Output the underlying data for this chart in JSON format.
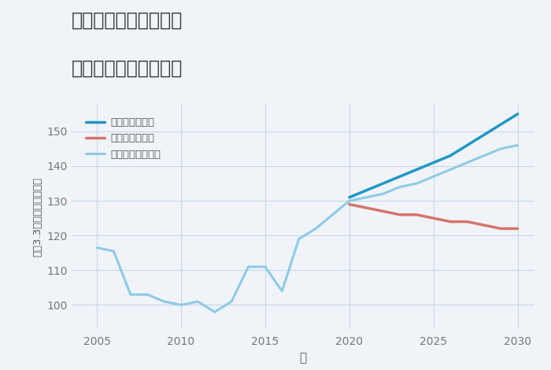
{
  "title_line1": "埼玉県川口市前上町の",
  "title_line2": "中古戸建ての価格推移",
  "xlabel": "年",
  "ylabel": "坪（3.3㎡）単価（万円）",
  "xlim": [
    2003.5,
    2031
  ],
  "ylim": [
    93,
    158
  ],
  "xticks": [
    2005,
    2010,
    2015,
    2020,
    2025,
    2030
  ],
  "yticks": [
    100,
    110,
    120,
    130,
    140,
    150
  ],
  "bg_color": "#f0f4f8",
  "grid_color": "#c8d8e8",
  "normal_color": "#8ecae6",
  "good_color": "#2196c4",
  "bad_color": "#d4756b",
  "normal_label": "ノーマルシナリオ",
  "good_label": "グッドシナリオ",
  "bad_label": "バッドシナリオ",
  "historical_years": [
    2005,
    2006,
    2007,
    2008,
    2009,
    2010,
    2011,
    2012,
    2013,
    2014,
    2015,
    2016,
    2017,
    2018,
    2019,
    2020
  ],
  "historical_values": [
    116.5,
    115.5,
    103,
    103,
    101,
    100,
    101,
    98,
    101,
    111,
    111,
    104,
    119,
    122,
    126,
    130
  ],
  "good_years": [
    2020,
    2021,
    2022,
    2023,
    2024,
    2025,
    2026,
    2027,
    2028,
    2029,
    2030
  ],
  "good_values": [
    131,
    133,
    135,
    137,
    139,
    141,
    143,
    146,
    149,
    152,
    155
  ],
  "bad_years": [
    2020,
    2021,
    2022,
    2023,
    2024,
    2025,
    2026,
    2027,
    2028,
    2029,
    2030
  ],
  "bad_values": [
    129,
    128,
    127,
    126,
    126,
    125,
    124,
    124,
    123,
    122,
    122
  ],
  "normal_future_years": [
    2020,
    2021,
    2022,
    2023,
    2024,
    2025,
    2026,
    2027,
    2028,
    2029,
    2030
  ],
  "normal_future_values": [
    130,
    131,
    132,
    134,
    135,
    137,
    139,
    141,
    143,
    145,
    146
  ]
}
